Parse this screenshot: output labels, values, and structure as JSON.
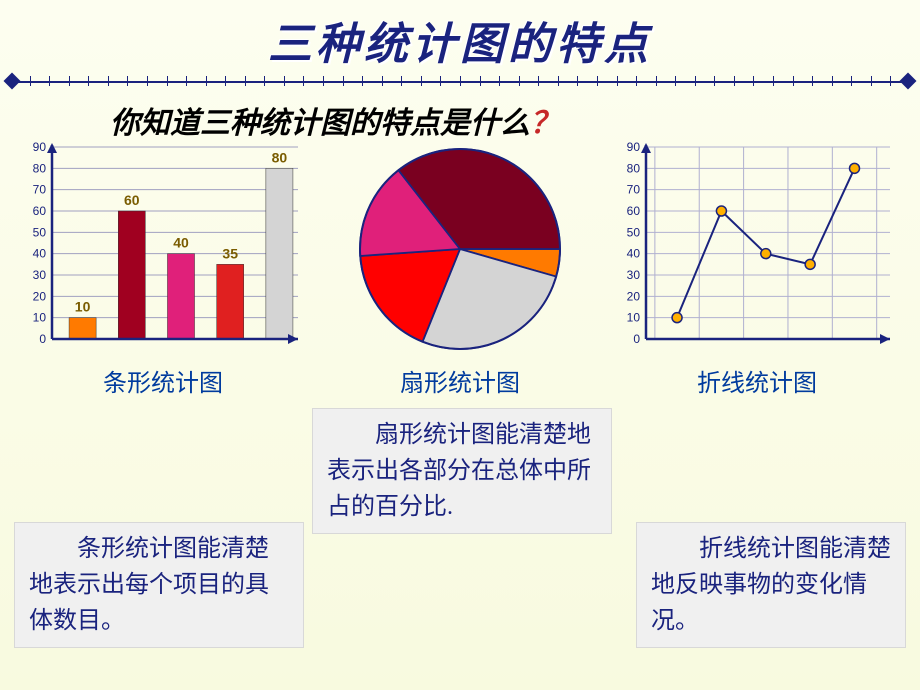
{
  "title": "三种统计图的特点",
  "subtitle_main": "你知道三种统计图的特点是什么",
  "subtitle_q": "？",
  "bar_chart": {
    "type": "bar",
    "caption": "条形统计图",
    "values": [
      10,
      60,
      40,
      35,
      80
    ],
    "colors": [
      "#ff7a00",
      "#a00020",
      "#e0207a",
      "#e02020",
      "#d4d4d4"
    ],
    "ylim": [
      0,
      90
    ],
    "ytick_step": 10,
    "yticks": [
      "0",
      "10",
      "20",
      "30",
      "40",
      "50",
      "60",
      "70",
      "80",
      "90"
    ],
    "axis_color": "#1a237e",
    "grid_color": "#a0a0c0",
    "label_color": "#7a5c00",
    "background": "#fdfef0"
  },
  "pie_chart": {
    "type": "pie",
    "caption": "扇形统计图",
    "slices": [
      {
        "value": 10,
        "color": "#ff7a00"
      },
      {
        "value": 60,
        "color": "#d4d4d4"
      },
      {
        "value": 40,
        "color": "#ff0000"
      },
      {
        "value": 35,
        "color": "#e0207a"
      },
      {
        "value": 80,
        "color": "#7a0020"
      }
    ],
    "border_color": "#1a237e",
    "start_angle_deg": 0
  },
  "line_chart": {
    "type": "line",
    "caption": "折线统计图",
    "values": [
      10,
      60,
      40,
      35,
      80
    ],
    "ylim": [
      0,
      90
    ],
    "ytick_step": 10,
    "yticks": [
      "0",
      "10",
      "20",
      "30",
      "40",
      "50",
      "60",
      "70",
      "80",
      "90"
    ],
    "axis_color": "#1a237e",
    "grid_color": "#b0b0d0",
    "line_color": "#1a237e",
    "marker_fill": "#ffb000",
    "marker_stroke": "#1a237e",
    "marker_radius": 5
  },
  "descriptions": {
    "bar": "　　条形统计图能清楚地表示出每个项目的具体数目。",
    "pie": "　　扇形统计图能清楚地表示出各部分在总体中所占的百分比.",
    "line": "　　折线统计图能清楚地反映事物的变化情况。"
  },
  "colors": {
    "title": "#1a237e",
    "caption": "#003b9e",
    "desc_text": "#1a237e",
    "desc_bg": "#f0f0f0",
    "page_bg_top": "#fdfef0",
    "page_bg_bottom": "#f8fadf"
  }
}
